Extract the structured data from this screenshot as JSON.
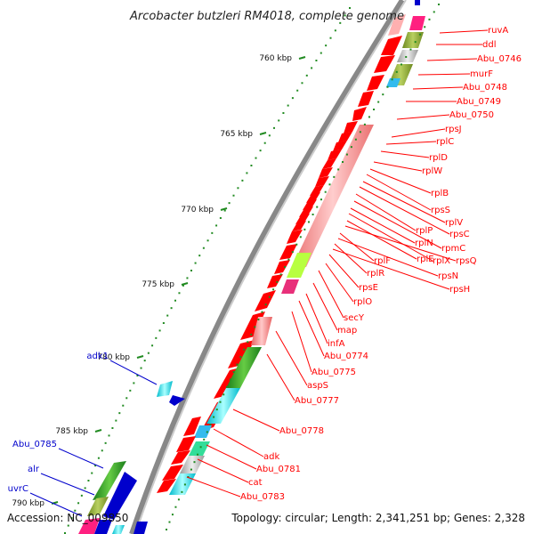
{
  "title": "Arcobacter butzleri RM4018, complete genome",
  "footer": {
    "accession": "Accession: NC_009850",
    "summary": "Topology: circular; Length: 2,341,251 bp; Genes: 2,328"
  },
  "colors": {
    "forward": "#ff0000",
    "reverse_label": "#0000cc",
    "backbone": "#888888",
    "tick": "#228b22"
  },
  "ticks": [
    "760 kbp",
    "765 kbp",
    "770 kbp",
    "775 kbp",
    "780 kbp",
    "785 kbp",
    "790 kbp"
  ],
  "labels_right": [
    "ruvA",
    "ddl",
    "Abu_0746",
    "murF",
    "Abu_0748",
    "Abu_0749",
    "Abu_0750",
    "rpsJ",
    "rplC",
    "rplD",
    "rplW",
    "rplB",
    "rpsS",
    "rplV",
    "rpsC",
    "rplP",
    "rpmC",
    "rplN",
    "rplX",
    "rplE",
    "rpsQ",
    "rplF",
    "rpsN",
    "rplR",
    "rpsH",
    "rpsE",
    "rplO",
    "secY",
    "map",
    "infA",
    "Abu_0774",
    "Abu_0775",
    "aspS",
    "Abu_0777",
    "Abu_0778",
    "adk",
    "Abu_0781",
    "cat",
    "Abu_0783"
  ],
  "labels_left": [
    "adk1",
    "Abu_0785",
    "alr",
    "uvrC"
  ]
}
